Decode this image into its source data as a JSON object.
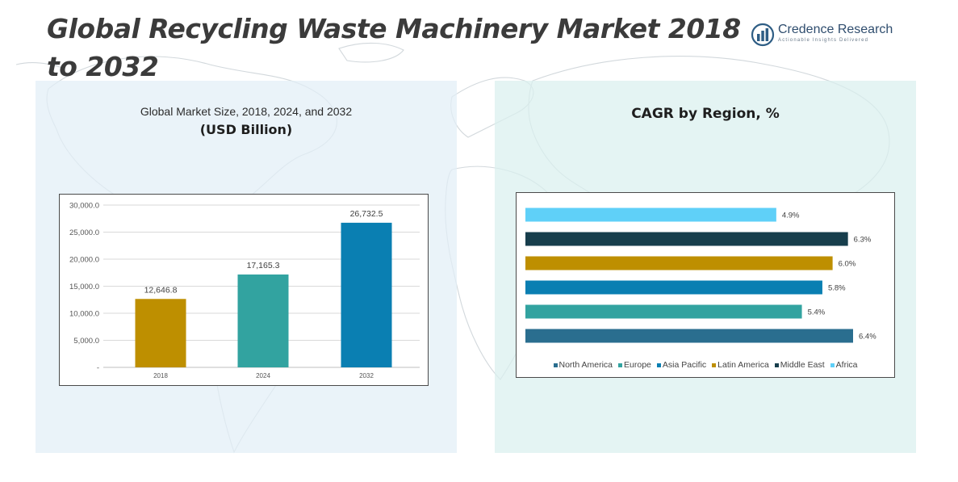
{
  "header": {
    "title": "Global Recycling Waste Machinery Market 2018 to 2032",
    "logo_name": "Credence Research",
    "logo_tagline": "Actionable Insights Delivered"
  },
  "left_panel": {
    "subtitle": "Global Market Size, 2018, 2024, and 2032",
    "unit": "(USD Billion)"
  },
  "right_panel": {
    "title": "CAGR by Region, %"
  },
  "chart_data": [
    {
      "type": "bar",
      "title": "Global Market Size, 2018, 2024, and 2032",
      "subtitle": "(USD Billion)",
      "categories": [
        "2018",
        "2024",
        "2032"
      ],
      "values": [
        12646.8,
        17165.3,
        26732.5
      ],
      "value_labels": [
        "12,646.8",
        "17,165.3",
        "26,732.5"
      ],
      "colors": [
        "#be8f00",
        "#32a3a0",
        "#0a7fb2"
      ],
      "ylim": [
        0,
        30000
      ],
      "yticks": [
        0,
        5000,
        10000,
        15000,
        20000,
        25000,
        30000
      ],
      "ytick_labels": [
        "-",
        "5,000.0",
        "10,000.0",
        "15,000.0",
        "20,000.0",
        "25,000.0",
        "30,000.0"
      ],
      "grid": true,
      "xlabel": "",
      "ylabel": ""
    },
    {
      "type": "bar",
      "orientation": "horizontal",
      "title": "CAGR by Region, %",
      "categories": [
        "North America",
        "Europe",
        "Asia Pacific",
        "Latin America",
        "Middle East",
        "Africa"
      ],
      "values": [
        6.4,
        5.4,
        5.8,
        6.0,
        6.3,
        4.9
      ],
      "value_labels": [
        "6.4%",
        "5.4%",
        "5.8%",
        "6.0%",
        "6.3%",
        "4.9%"
      ],
      "colors": [
        "#2a6e8f",
        "#32a3a0",
        "#0a7fb2",
        "#be8f00",
        "#173e4c",
        "#5fd0f8"
      ],
      "legend": "bottom",
      "grid": false
    }
  ]
}
